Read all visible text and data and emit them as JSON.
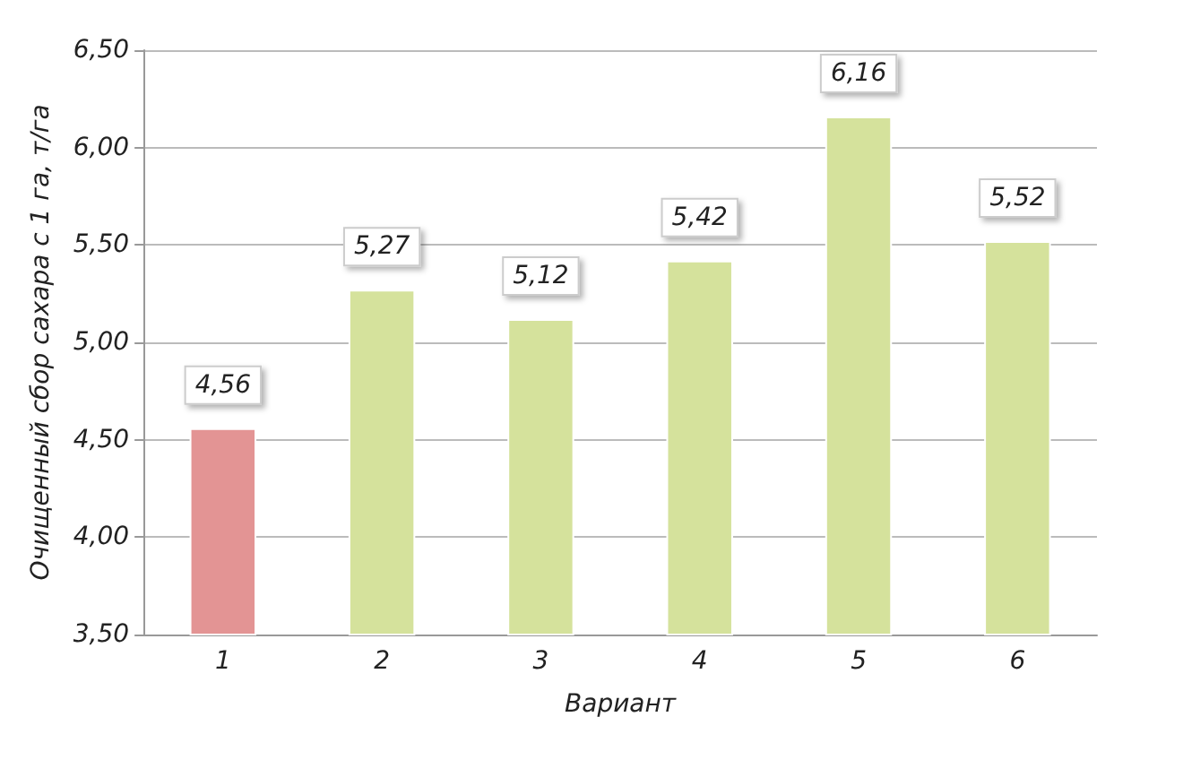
{
  "chart_data": {
    "type": "bar",
    "xlabel": "Вариант",
    "ylabel": "Очищенный сбор сахара с 1 га, т/га",
    "categories": [
      "1",
      "2",
      "3",
      "4",
      "5",
      "6"
    ],
    "values": [
      4.56,
      5.27,
      5.12,
      5.42,
      6.16,
      5.52
    ],
    "colors": [
      "#e39494",
      "#d5e29c",
      "#d5e29c",
      "#d5e29c",
      "#d5e29c",
      "#d5e29c"
    ],
    "value_labels": [
      "4,56",
      "5,27",
      "5,12",
      "5,42",
      "6,16",
      "5,52"
    ],
    "ylim": [
      3.5,
      6.5
    ],
    "yticks": [
      {
        "value": 3.5,
        "label": "3,50"
      },
      {
        "value": 4,
        "label": "4,00"
      },
      {
        "value": 4.5,
        "label": "4,50"
      },
      {
        "value": 5,
        "label": "5,00"
      },
      {
        "value": 5.5,
        "label": "5,50"
      },
      {
        "value": 6,
        "label": "6,00"
      },
      {
        "value": 6.5,
        "label": "6,50"
      }
    ],
    "grid": "y"
  }
}
